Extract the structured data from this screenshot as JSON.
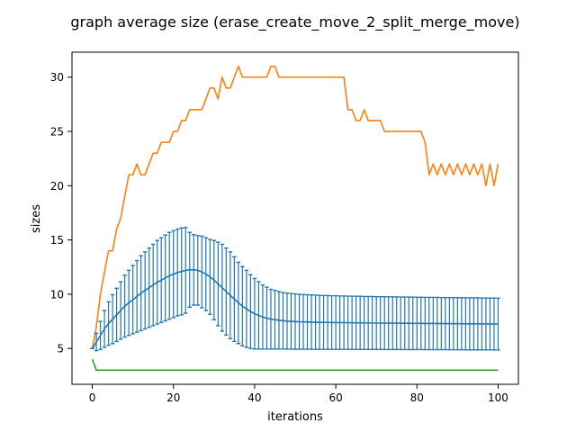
{
  "chart_data": {
    "type": "line",
    "title": "graph average size (erase_create_move_2_split_merge_move)",
    "xlabel": "iterations",
    "ylabel": "sizes",
    "xlim": [
      -5,
      105
    ],
    "ylim": [
      1.7,
      32.3
    ],
    "xticks": [
      0,
      20,
      40,
      60,
      80,
      100
    ],
    "yticks": [
      5,
      10,
      15,
      20,
      25,
      30
    ],
    "grid": false,
    "legend": "none",
    "x": [
      0,
      1,
      2,
      3,
      4,
      5,
      6,
      7,
      8,
      9,
      10,
      11,
      12,
      13,
      14,
      15,
      16,
      17,
      18,
      19,
      20,
      21,
      22,
      23,
      24,
      25,
      26,
      27,
      28,
      29,
      30,
      31,
      32,
      33,
      34,
      35,
      36,
      37,
      38,
      39,
      40,
      41,
      42,
      43,
      44,
      45,
      46,
      47,
      48,
      49,
      50,
      51,
      52,
      53,
      54,
      55,
      56,
      57,
      58,
      59,
      60,
      61,
      62,
      63,
      64,
      65,
      66,
      67,
      68,
      69,
      70,
      71,
      72,
      73,
      74,
      75,
      76,
      77,
      78,
      79,
      80,
      81,
      82,
      83,
      84,
      85,
      86,
      87,
      88,
      89,
      90,
      91,
      92,
      93,
      94,
      95,
      96,
      97,
      98,
      99,
      100
    ],
    "series": [
      {
        "color": "#ff7f0e",
        "values": [
          5,
          7,
          10,
          12,
          14,
          14,
          16,
          17,
          19,
          21,
          21,
          22,
          21,
          21,
          22,
          23,
          23,
          24,
          24,
          24,
          25,
          25,
          26,
          26,
          27,
          27,
          27,
          27,
          28,
          29,
          29,
          28,
          30,
          29,
          29,
          30,
          31,
          30,
          30,
          30,
          30,
          30,
          30,
          30,
          31,
          31,
          30,
          30,
          30,
          30,
          30,
          30,
          30,
          30,
          30,
          30,
          30,
          30,
          30,
          30,
          30,
          30,
          30,
          27,
          27,
          26,
          26,
          27,
          26,
          26,
          26,
          26,
          25,
          25,
          25,
          25,
          25,
          25,
          25,
          25,
          25,
          25,
          24,
          21,
          22,
          21,
          22,
          21,
          22,
          21,
          22,
          21,
          22,
          21,
          22,
          21,
          22,
          20,
          22,
          20,
          22
        ]
      },
      {
        "color": "#1f77b4",
        "mean": [
          5,
          5.6,
          6.2,
          6.8,
          7.3,
          7.7,
          8.1,
          8.5,
          8.9,
          9.2,
          9.5,
          9.8,
          10.1,
          10.35,
          10.6,
          10.85,
          11.1,
          11.3,
          11.5,
          11.7,
          11.85,
          12,
          12.1,
          12.2,
          12.25,
          12.25,
          12.2,
          12.05,
          11.85,
          11.6,
          11.3,
          10.95,
          10.6,
          10.25,
          9.9,
          9.55,
          9.2,
          8.9,
          8.65,
          8.4,
          8.2,
          8.05,
          7.9,
          7.8,
          7.7,
          7.65,
          7.6,
          7.55,
          7.52,
          7.5,
          7.48,
          7.46,
          7.45,
          7.44,
          7.43,
          7.42,
          7.41,
          7.4,
          7.4,
          7.39,
          7.39,
          7.38,
          7.38,
          7.37,
          7.37,
          7.36,
          7.36,
          7.35,
          7.35,
          7.35,
          7.34,
          7.34,
          7.34,
          7.33,
          7.33,
          7.33,
          7.32,
          7.32,
          7.32,
          7.31,
          7.31,
          7.31,
          7.3,
          7.3,
          7.3,
          7.3,
          7.29,
          7.29,
          7.29,
          7.28,
          7.28,
          7.28,
          7.27,
          7.27,
          7.27,
          7.27,
          7.26,
          7.26,
          7.26,
          7.25,
          7.25
        ],
        "std": [
          0,
          0.8,
          1.3,
          1.7,
          2,
          2.25,
          2.45,
          2.65,
          2.85,
          3,
          3.15,
          3.3,
          3.45,
          3.55,
          3.65,
          3.75,
          3.85,
          3.9,
          3.95,
          4,
          4,
          4,
          4,
          3.95,
          3.45,
          3.25,
          3.2,
          3.3,
          3.35,
          3.45,
          3.65,
          3.85,
          4,
          4,
          4,
          3.9,
          3.75,
          3.65,
          3.55,
          3.4,
          3.25,
          3.1,
          2.95,
          2.85,
          2.75,
          2.7,
          2.65,
          2.6,
          2.58,
          2.56,
          2.55,
          2.53,
          2.52,
          2.51,
          2.5,
          2.5,
          2.49,
          2.48,
          2.48,
          2.47,
          2.47,
          2.46,
          2.46,
          2.45,
          2.45,
          2.45,
          2.45,
          2.44,
          2.44,
          2.44,
          2.43,
          2.43,
          2.43,
          2.43,
          2.43,
          2.42,
          2.42,
          2.42,
          2.42,
          2.42,
          2.41,
          2.41,
          2.41,
          2.41,
          2.41,
          2.41,
          2.4,
          2.4,
          2.4,
          2.4,
          2.4,
          2.4,
          2.4,
          2.4,
          2.4,
          2.4,
          2.39,
          2.39,
          2.39,
          2.39,
          2.39
        ]
      },
      {
        "color": "#2ca02c",
        "values": [
          4,
          3,
          3,
          3,
          3,
          3,
          3,
          3,
          3,
          3,
          3,
          3,
          3,
          3,
          3,
          3,
          3,
          3,
          3,
          3,
          3,
          3,
          3,
          3,
          3,
          3,
          3,
          3,
          3,
          3,
          3,
          3,
          3,
          3,
          3,
          3,
          3,
          3,
          3,
          3,
          3,
          3,
          3,
          3,
          3,
          3,
          3,
          3,
          3,
          3,
          3,
          3,
          3,
          3,
          3,
          3,
          3,
          3,
          3,
          3,
          3,
          3,
          3,
          3,
          3,
          3,
          3,
          3,
          3,
          3,
          3,
          3,
          3,
          3,
          3,
          3,
          3,
          3,
          3,
          3,
          3,
          3,
          3,
          3,
          3,
          3,
          3,
          3,
          3,
          3,
          3,
          3,
          3,
          3,
          3,
          3,
          3,
          3,
          3,
          3,
          3
        ]
      }
    ]
  }
}
